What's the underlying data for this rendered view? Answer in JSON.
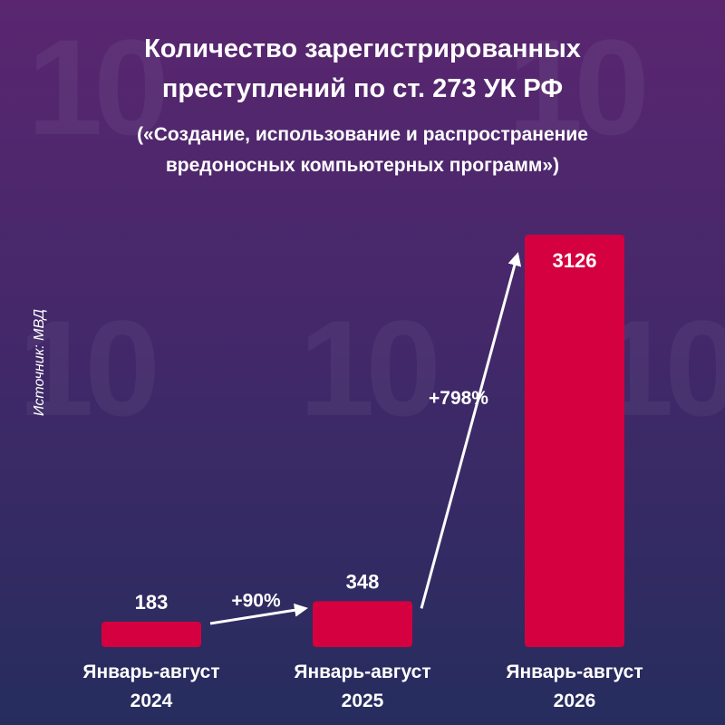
{
  "title": [
    "Количество зарегистрированных",
    "преступлений по ст. 273 УК РФ"
  ],
  "subtitle": [
    "(«Создание, использование и распространение",
    "вредоносных компьютерных программ»)"
  ],
  "source": "Источник: МВД",
  "watermark": "10",
  "colors": {
    "bar": "#d4003f",
    "arrow": "#ffffff",
    "text": "#ffffff"
  },
  "chart_data": {
    "type": "bar",
    "categories": [
      [
        "Январь-август",
        "2024"
      ],
      [
        "Январь-август",
        "2025"
      ],
      [
        "Январь-август",
        "2026"
      ]
    ],
    "values": [
      183,
      348,
      3126
    ],
    "value_labels": [
      "183",
      "348",
      "3126"
    ],
    "changes": [
      {
        "from": 0,
        "to": 1,
        "label": "+90%"
      },
      {
        "from": 1,
        "to": 2,
        "label": "+798%"
      }
    ]
  }
}
